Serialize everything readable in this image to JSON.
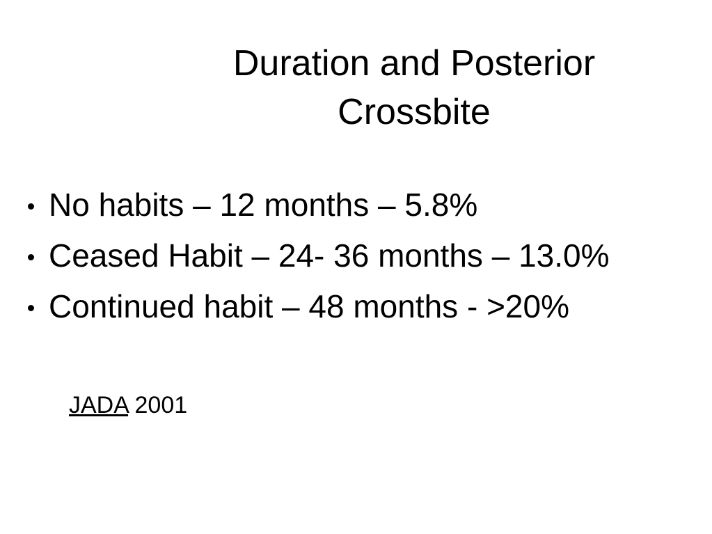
{
  "slide": {
    "title_lines": [
      "Duration and Posterior",
      "Crossbite"
    ],
    "bullets": [
      "No habits – 12 months – 5.8%",
      "Ceased Habit – 24- 36 months – 13.0%",
      "Continued habit – 48 months - >20%"
    ],
    "citation": {
      "journal": "JADA",
      "year": "2001"
    }
  }
}
